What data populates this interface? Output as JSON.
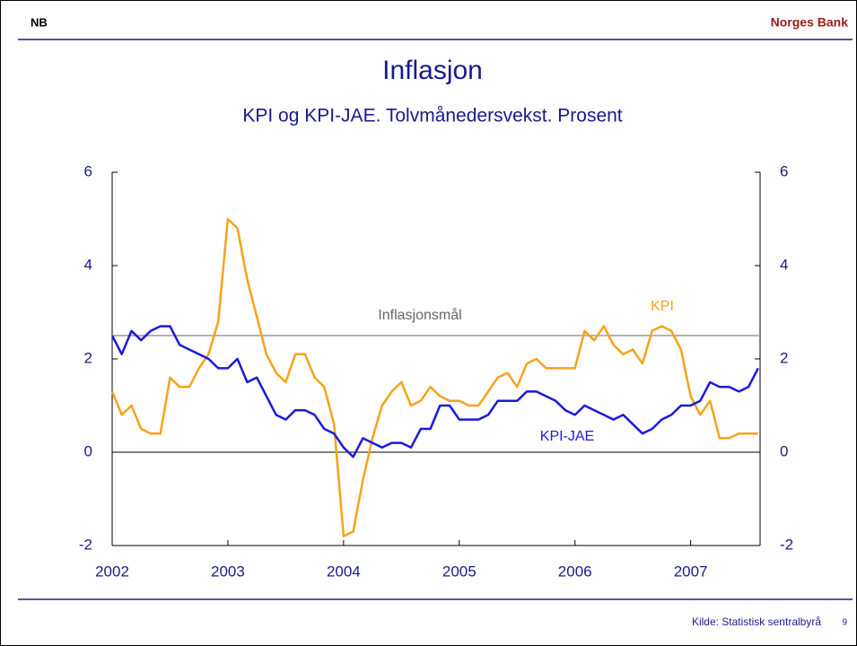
{
  "header": {
    "logo": "NB",
    "brand": "Norges Bank"
  },
  "chart_data": {
    "type": "line",
    "title": "Inflasjon",
    "subtitle": "KPI og KPI-JAE. Tolvmånedersvekst. Prosent",
    "x": [
      2002,
      2002.083,
      2002.167,
      2002.25,
      2002.333,
      2002.417,
      2002.5,
      2002.583,
      2002.667,
      2002.75,
      2002.833,
      2002.917,
      2003,
      2003.083,
      2003.167,
      2003.25,
      2003.333,
      2003.417,
      2003.5,
      2003.583,
      2003.667,
      2003.75,
      2003.833,
      2003.917,
      2004,
      2004.083,
      2004.167,
      2004.25,
      2004.333,
      2004.417,
      2004.5,
      2004.583,
      2004.667,
      2004.75,
      2004.833,
      2004.917,
      2005,
      2005.083,
      2005.167,
      2005.25,
      2005.333,
      2005.417,
      2005.5,
      2005.583,
      2005.667,
      2005.75,
      2005.833,
      2005.917,
      2006,
      2006.083,
      2006.167,
      2006.25,
      2006.333,
      2006.417,
      2006.5,
      2006.583,
      2006.667,
      2006.75,
      2006.833,
      2006.917,
      2007,
      2007.083,
      2007.167,
      2007.25,
      2007.333,
      2007.417,
      2007.5,
      2007.583
    ],
    "series": [
      {
        "name": "KPI",
        "color": "#f5a31a",
        "values": [
          1.3,
          0.8,
          1.0,
          0.5,
          0.4,
          0.4,
          1.6,
          1.4,
          1.4,
          1.8,
          2.1,
          2.8,
          5.0,
          4.8,
          3.7,
          2.9,
          2.1,
          1.7,
          1.5,
          2.1,
          2.1,
          1.6,
          1.4,
          0.6,
          -1.8,
          -1.7,
          -0.6,
          0.3,
          1.0,
          1.3,
          1.5,
          1.0,
          1.1,
          1.4,
          1.2,
          1.1,
          1.1,
          1.0,
          1.0,
          1.3,
          1.6,
          1.7,
          1.4,
          1.9,
          2.0,
          1.8,
          1.8,
          1.8,
          1.8,
          2.6,
          2.4,
          2.7,
          2.3,
          2.1,
          2.2,
          1.9,
          2.6,
          2.7,
          2.6,
          2.2,
          1.2,
          0.8,
          1.1,
          0.3,
          0.3,
          0.4,
          0.4,
          0.4
        ]
      },
      {
        "name": "KPI-JAE",
        "color": "#1a1adc",
        "values": [
          2.5,
          2.1,
          2.6,
          2.4,
          2.6,
          2.7,
          2.7,
          2.3,
          2.2,
          2.1,
          2.0,
          1.8,
          1.8,
          2.0,
          1.5,
          1.6,
          1.2,
          0.8,
          0.7,
          0.9,
          0.9,
          0.8,
          0.5,
          0.4,
          0.1,
          -0.1,
          0.3,
          0.2,
          0.1,
          0.2,
          0.2,
          0.1,
          0.5,
          0.5,
          1.0,
          1.0,
          0.7,
          0.7,
          0.7,
          0.8,
          1.1,
          1.1,
          1.1,
          1.3,
          1.3,
          1.2,
          1.1,
          0.9,
          0.8,
          1.0,
          0.9,
          0.8,
          0.7,
          0.8,
          0.6,
          0.4,
          0.5,
          0.7,
          0.8,
          1.0,
          1.0,
          1.1,
          1.5,
          1.4,
          1.4,
          1.3,
          1.4,
          1.8
        ]
      }
    ],
    "target": {
      "label": "Inflasjonsmål",
      "value": 2.5,
      "color": "#999999"
    },
    "xlim": [
      2002,
      2007.6
    ],
    "xticks": [
      2002,
      2003,
      2004,
      2005,
      2006,
      2007
    ],
    "ylim": [
      -2,
      6
    ],
    "yticks": [
      -2,
      0,
      2,
      4,
      6
    ],
    "y2lim": [
      -2,
      6
    ],
    "y2ticks": [
      -2,
      0,
      2,
      4,
      6
    ]
  },
  "footer": {
    "source": "Kilde: Statistisk sentralbyrå",
    "page": "9"
  }
}
